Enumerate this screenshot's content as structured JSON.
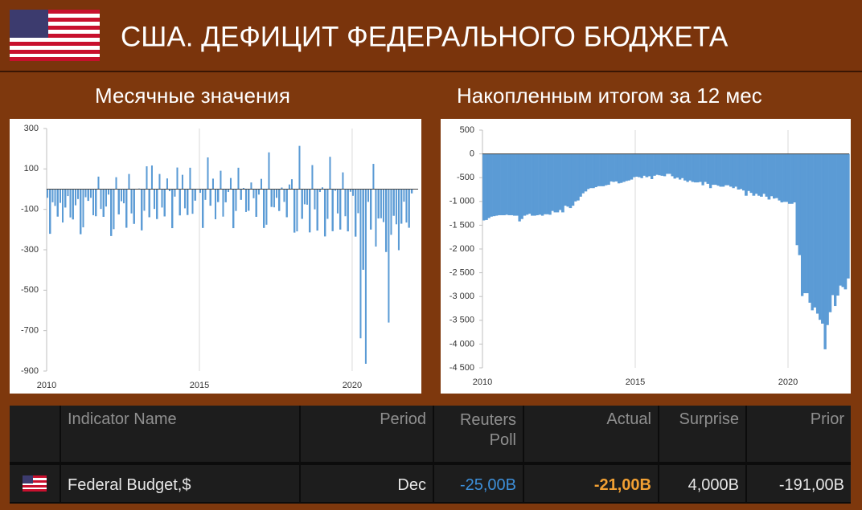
{
  "header": {
    "title": "США. ДЕФИЦИТ ФЕДЕРАЛЬНОГО БЮДЖЕТА"
  },
  "chart_data": [
    {
      "type": "bar",
      "title": "Месячные значения",
      "color": "#5b9bd5",
      "grid": "x",
      "xlim": [
        2010,
        2022.16
      ],
      "xticks": [
        2010,
        2015,
        2020
      ],
      "ylim": [
        -900,
        300
      ],
      "yticks": [
        300,
        100,
        -100,
        -300,
        -500,
        -700,
        -900
      ],
      "x": [
        2010,
        2010.08,
        2010.17,
        2010.25,
        2010.33,
        2010.42,
        2010.5,
        2010.58,
        2010.67,
        2010.75,
        2010.83,
        2010.92,
        2011,
        2011.08,
        2011.17,
        2011.25,
        2011.33,
        2011.42,
        2011.5,
        2011.58,
        2011.67,
        2011.75,
        2011.83,
        2011.92,
        2012,
        2012.08,
        2012.17,
        2012.25,
        2012.33,
        2012.42,
        2012.5,
        2012.58,
        2012.67,
        2012.75,
        2012.83,
        2012.92,
        2013,
        2013.08,
        2013.17,
        2013.25,
        2013.33,
        2013.42,
        2013.5,
        2013.58,
        2013.67,
        2013.75,
        2013.83,
        2013.92,
        2014,
        2014.08,
        2014.17,
        2014.25,
        2014.33,
        2014.42,
        2014.5,
        2014.58,
        2014.67,
        2014.75,
        2014.83,
        2014.92,
        2015,
        2015.08,
        2015.17,
        2015.25,
        2015.33,
        2015.42,
        2015.5,
        2015.58,
        2015.67,
        2015.75,
        2015.83,
        2015.92,
        2016,
        2016.08,
        2016.17,
        2016.25,
        2016.33,
        2016.42,
        2016.5,
        2016.58,
        2016.67,
        2016.75,
        2016.83,
        2016.92,
        2017,
        2017.08,
        2017.17,
        2017.25,
        2017.33,
        2017.42,
        2017.5,
        2017.58,
        2017.67,
        2017.75,
        2017.83,
        2017.92,
        2018,
        2018.08,
        2018.17,
        2018.25,
        2018.33,
        2018.42,
        2018.5,
        2018.58,
        2018.67,
        2018.75,
        2018.83,
        2018.92,
        2019,
        2019.08,
        2019.17,
        2019.25,
        2019.33,
        2019.42,
        2019.5,
        2019.58,
        2019.67,
        2019.75,
        2019.83,
        2019.92,
        2020,
        2020.08,
        2020.17,
        2020.25,
        2020.33,
        2020.42,
        2020.5,
        2020.58,
        2020.67,
        2020.75,
        2020.83,
        2020.92,
        2021,
        2021.08,
        2021.17,
        2021.25,
        2021.33,
        2021.42,
        2021.5,
        2021.58,
        2021.67,
        2021.75,
        2021.83,
        2021.92
      ],
      "values": [
        -43,
        -221,
        -65,
        -83,
        -136,
        -68,
        -165,
        -91,
        -34,
        -140,
        -150,
        -80,
        -49,
        -223,
        -189,
        -40,
        -58,
        -43,
        -129,
        -134,
        62,
        -98,
        -137,
        -86,
        -27,
        -232,
        -198,
        59,
        -125,
        -60,
        -70,
        -191,
        75,
        -120,
        -172,
        -1,
        3,
        -204,
        -107,
        113,
        -139,
        117,
        -98,
        -148,
        75,
        -91,
        -135,
        53,
        -10,
        -193,
        -37,
        107,
        -130,
        71,
        -95,
        -128,
        106,
        -122,
        -57,
        2,
        -18,
        -192,
        -53,
        157,
        -82,
        52,
        -149,
        -64,
        91,
        -136,
        -65,
        -14,
        55,
        -193,
        -108,
        106,
        -53,
        6,
        -113,
        -107,
        33,
        -45,
        -137,
        -27,
        51,
        -192,
        -176,
        182,
        -88,
        -90,
        -43,
        -108,
        8,
        -63,
        -139,
        23,
        49,
        -215,
        -209,
        214,
        -147,
        -75,
        -77,
        -214,
        119,
        -100,
        -205,
        -14,
        9,
        -234,
        -147,
        160,
        -208,
        -8,
        -120,
        -200,
        83,
        -134,
        -209,
        -13,
        -33,
        -235,
        -119,
        -738,
        -399,
        -864,
        -63,
        -200,
        125,
        -284,
        -145,
        -144,
        -163,
        -311,
        -660,
        -226,
        -132,
        -174,
        -302,
        -171,
        -62,
        -165,
        -191,
        -21
      ]
    },
    {
      "type": "bar",
      "title": "Накопленным итогом за 12 мес",
      "color": "#5b9bd5",
      "grid": "x",
      "xlim": [
        2010,
        2022
      ],
      "xticks": [
        2010,
        2015,
        2020
      ],
      "ylim": [
        -4500,
        500
      ],
      "yticks": [
        500,
        0,
        -500,
        {
          "value": -1000,
          "label": "-1 000"
        },
        {
          "value": -1500,
          "label": "-1 500"
        },
        {
          "value": -2000,
          "label": "-2 000"
        },
        {
          "value": -2500,
          "label": "-2 500"
        },
        {
          "value": -3000,
          "label": "-3 000"
        },
        {
          "value": -3500,
          "label": "-3 500"
        },
        {
          "value": -4000,
          "label": "-4 000"
        },
        {
          "value": -4500,
          "label": "-4 500"
        }
      ],
      "x": [
        2010,
        2010.08,
        2010.17,
        2010.25,
        2010.33,
        2010.42,
        2010.5,
        2010.58,
        2010.67,
        2010.75,
        2010.83,
        2010.92,
        2011,
        2011.08,
        2011.17,
        2011.25,
        2011.33,
        2011.42,
        2011.5,
        2011.58,
        2011.67,
        2011.75,
        2011.83,
        2011.92,
        2012,
        2012.08,
        2012.17,
        2012.25,
        2012.33,
        2012.42,
        2012.5,
        2012.58,
        2012.67,
        2012.75,
        2012.83,
        2012.92,
        2013,
        2013.08,
        2013.17,
        2013.25,
        2013.33,
        2013.42,
        2013.5,
        2013.58,
        2013.67,
        2013.75,
        2013.83,
        2013.92,
        2014,
        2014.08,
        2014.17,
        2014.25,
        2014.33,
        2014.42,
        2014.5,
        2014.58,
        2014.67,
        2014.75,
        2014.83,
        2014.92,
        2015,
        2015.08,
        2015.17,
        2015.25,
        2015.33,
        2015.42,
        2015.5,
        2015.58,
        2015.67,
        2015.75,
        2015.83,
        2015.92,
        2016,
        2016.08,
        2016.17,
        2016.25,
        2016.33,
        2016.42,
        2016.5,
        2016.58,
        2016.67,
        2016.75,
        2016.83,
        2016.92,
        2017,
        2017.08,
        2017.17,
        2017.25,
        2017.33,
        2017.42,
        2017.5,
        2017.58,
        2017.67,
        2017.75,
        2017.83,
        2017.92,
        2018,
        2018.08,
        2018.17,
        2018.25,
        2018.33,
        2018.42,
        2018.5,
        2018.58,
        2018.67,
        2018.75,
        2018.83,
        2018.92,
        2019,
        2019.08,
        2019.17,
        2019.25,
        2019.33,
        2019.42,
        2019.5,
        2019.58,
        2019.67,
        2019.75,
        2019.83,
        2019.92,
        2020,
        2020.08,
        2020.17,
        2020.25,
        2020.33,
        2020.42,
        2020.5,
        2020.58,
        2020.67,
        2020.75,
        2020.83,
        2020.92,
        2021,
        2021.08,
        2021.17,
        2021.25,
        2021.33,
        2021.42,
        2021.5,
        2021.58,
        2021.67,
        2021.75,
        2021.83,
        2021.92
      ],
      "values": [
        -1400,
        -1390,
        -1350,
        -1320,
        -1310,
        -1300,
        -1290,
        -1290,
        -1290,
        -1280,
        -1290,
        -1290,
        -1300,
        -1300,
        -1420,
        -1370,
        -1300,
        -1280,
        -1260,
        -1300,
        -1300,
        -1290,
        -1280,
        -1300,
        -1270,
        -1270,
        -1280,
        -1200,
        -1230,
        -1230,
        -1180,
        -1230,
        -1090,
        -1110,
        -1140,
        -1090,
        -1000,
        -980,
        -900,
        -830,
        -790,
        -740,
        -720,
        -720,
        -700,
        -680,
        -680,
        -680,
        -660,
        -650,
        -580,
        -590,
        -580,
        -620,
        -610,
        -590,
        -570,
        -560,
        -540,
        -490,
        -480,
        -490,
        -510,
        -460,
        -490,
        -470,
        -530,
        -460,
        -440,
        -450,
        -460,
        -470,
        -420,
        -420,
        -470,
        -520,
        -500,
        -540,
        -510,
        -560,
        -590,
        -560,
        -590,
        -600,
        -600,
        -590,
        -660,
        -590,
        -630,
        -720,
        -650,
        -650,
        -670,
        -690,
        -690,
        -660,
        -660,
        -690,
        -720,
        -690,
        -750,
        -740,
        -770,
        -880,
        -780,
        -820,
        -880,
        -840,
        -880,
        -900,
        -840,
        -900,
        -960,
        -890,
        -940,
        -930,
        -980,
        -1020,
        -1010,
        -1010,
        -1050,
        -1050,
        -1020,
        -1920,
        -2130,
        -2990,
        -2930,
        -2930,
        -3130,
        -3290,
        -3230,
        -3360,
        -3490,
        -3570,
        -4110,
        -3600,
        -3330,
        -2970,
        -3200,
        -2980,
        -2770,
        -2800,
        -2850,
        -2620
      ]
    }
  ],
  "table": {
    "columns": [
      "Indicator Name",
      "Period",
      "Reuters Poll",
      "Actual",
      "Surprise",
      "Prior"
    ],
    "rows": [
      [
        "Federal Budget,$",
        "Dec",
        "-25,00B",
        "-21,00B",
        "4,000B",
        "-191,00B"
      ]
    ]
  }
}
